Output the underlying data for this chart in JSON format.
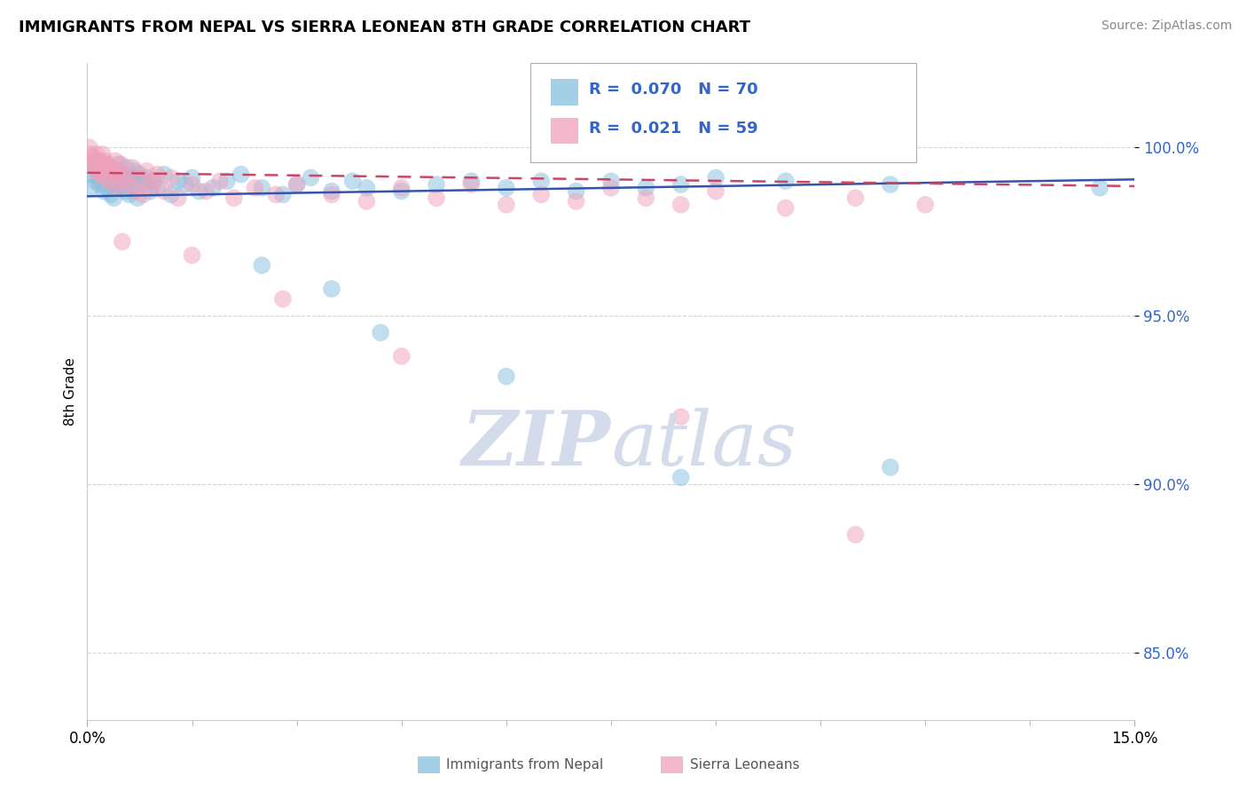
{
  "title": "IMMIGRANTS FROM NEPAL VS SIERRA LEONEAN 8TH GRADE CORRELATION CHART",
  "source": "Source: ZipAtlas.com",
  "ylabel": "8th Grade",
  "yticks": [
    85.0,
    90.0,
    95.0,
    100.0
  ],
  "ytick_labels": [
    "85.0%",
    "90.0%",
    "95.0%",
    "100.0%"
  ],
  "xlim": [
    0.0,
    15.0
  ],
  "ylim": [
    83.0,
    102.5
  ],
  "legend_label1": "Immigrants from Nepal",
  "legend_label2": "Sierra Leoneans",
  "R1": 0.07,
  "N1": 70,
  "R2": 0.021,
  "N2": 59,
  "blue_color": "#85bfdf",
  "pink_color": "#f0a0bb",
  "trend_blue": "#3355aa",
  "trend_pink": "#cc4466",
  "legend_text_color": "#3366cc",
  "watermark_color": "#d0d8e8",
  "nepal_x": [
    0.05,
    0.08,
    0.1,
    0.12,
    0.14,
    0.15,
    0.17,
    0.18,
    0.2,
    0.22,
    0.24,
    0.25,
    0.27,
    0.28,
    0.3,
    0.32,
    0.34,
    0.35,
    0.37,
    0.38,
    0.4,
    0.42,
    0.44,
    0.45,
    0.47,
    0.5,
    0.52,
    0.55,
    0.57,
    0.6,
    0.62,
    0.65,
    0.68,
    0.7,
    0.72,
    0.75,
    0.8,
    0.85,
    0.9,
    0.95,
    1.0,
    1.1,
    1.2,
    1.3,
    1.4,
    1.5,
    1.6,
    1.8,
    2.0,
    2.2,
    2.5,
    2.8,
    3.0,
    3.2,
    3.5,
    3.8,
    4.0,
    4.5,
    5.0,
    5.5,
    6.0,
    6.5,
    7.0,
    7.5,
    8.0,
    8.5,
    9.0,
    10.0,
    11.5,
    14.5
  ],
  "nepal_y": [
    98.8,
    99.2,
    99.5,
    99.0,
    99.3,
    99.6,
    99.1,
    98.9,
    99.4,
    99.2,
    98.7,
    99.5,
    99.3,
    98.8,
    99.1,
    99.4,
    98.6,
    99.2,
    99.0,
    98.5,
    99.3,
    99.1,
    98.8,
    99.5,
    99.0,
    98.9,
    99.2,
    98.7,
    99.4,
    98.6,
    99.1,
    98.8,
    99.3,
    99.0,
    98.5,
    99.2,
    98.9,
    99.1,
    98.7,
    99.0,
    98.8,
    99.2,
    98.6,
    99.0,
    98.9,
    99.1,
    98.7,
    98.8,
    99.0,
    99.2,
    98.8,
    98.6,
    98.9,
    99.1,
    98.7,
    99.0,
    98.8,
    98.7,
    98.9,
    99.0,
    98.8,
    99.0,
    98.7,
    99.0,
    98.8,
    98.9,
    99.1,
    99.0,
    98.9,
    98.8
  ],
  "sl_x": [
    0.03,
    0.05,
    0.07,
    0.08,
    0.1,
    0.12,
    0.13,
    0.15,
    0.17,
    0.18,
    0.2,
    0.22,
    0.24,
    0.25,
    0.27,
    0.3,
    0.32,
    0.35,
    0.37,
    0.4,
    0.42,
    0.45,
    0.48,
    0.5,
    0.55,
    0.6,
    0.65,
    0.7,
    0.75,
    0.8,
    0.85,
    0.9,
    0.95,
    1.0,
    1.1,
    1.2,
    1.3,
    1.5,
    1.7,
    1.9,
    2.1,
    2.4,
    2.7,
    3.0,
    3.5,
    4.0,
    4.5,
    5.0,
    5.5,
    6.0,
    6.5,
    7.0,
    7.5,
    8.0,
    8.5,
    9.0,
    10.0,
    11.0,
    12.0
  ],
  "sl_y": [
    100.0,
    99.8,
    99.5,
    99.7,
    99.6,
    99.3,
    99.8,
    99.4,
    99.6,
    99.2,
    99.5,
    99.8,
    99.1,
    99.6,
    99.3,
    99.5,
    99.0,
    99.4,
    99.2,
    99.6,
    98.8,
    99.3,
    99.5,
    99.0,
    99.2,
    98.9,
    99.4,
    98.7,
    99.1,
    98.6,
    99.3,
    98.8,
    99.0,
    99.2,
    98.7,
    99.1,
    98.5,
    98.9,
    98.7,
    99.0,
    98.5,
    98.8,
    98.6,
    98.9,
    98.6,
    98.4,
    98.8,
    98.5,
    98.9,
    98.3,
    98.6,
    98.4,
    98.8,
    98.5,
    98.3,
    98.7,
    98.2,
    98.5,
    98.3
  ],
  "nepal_outliers_x": [
    2.5,
    3.5,
    4.2,
    6.0,
    8.5,
    11.5
  ],
  "nepal_outliers_y": [
    96.5,
    95.8,
    94.5,
    93.2,
    90.2,
    90.5
  ],
  "sl_outliers_x": [
    0.5,
    1.5,
    2.8,
    4.5,
    8.5,
    11.0
  ],
  "sl_outliers_y": [
    97.2,
    96.8,
    95.5,
    93.8,
    92.0,
    88.5
  ]
}
